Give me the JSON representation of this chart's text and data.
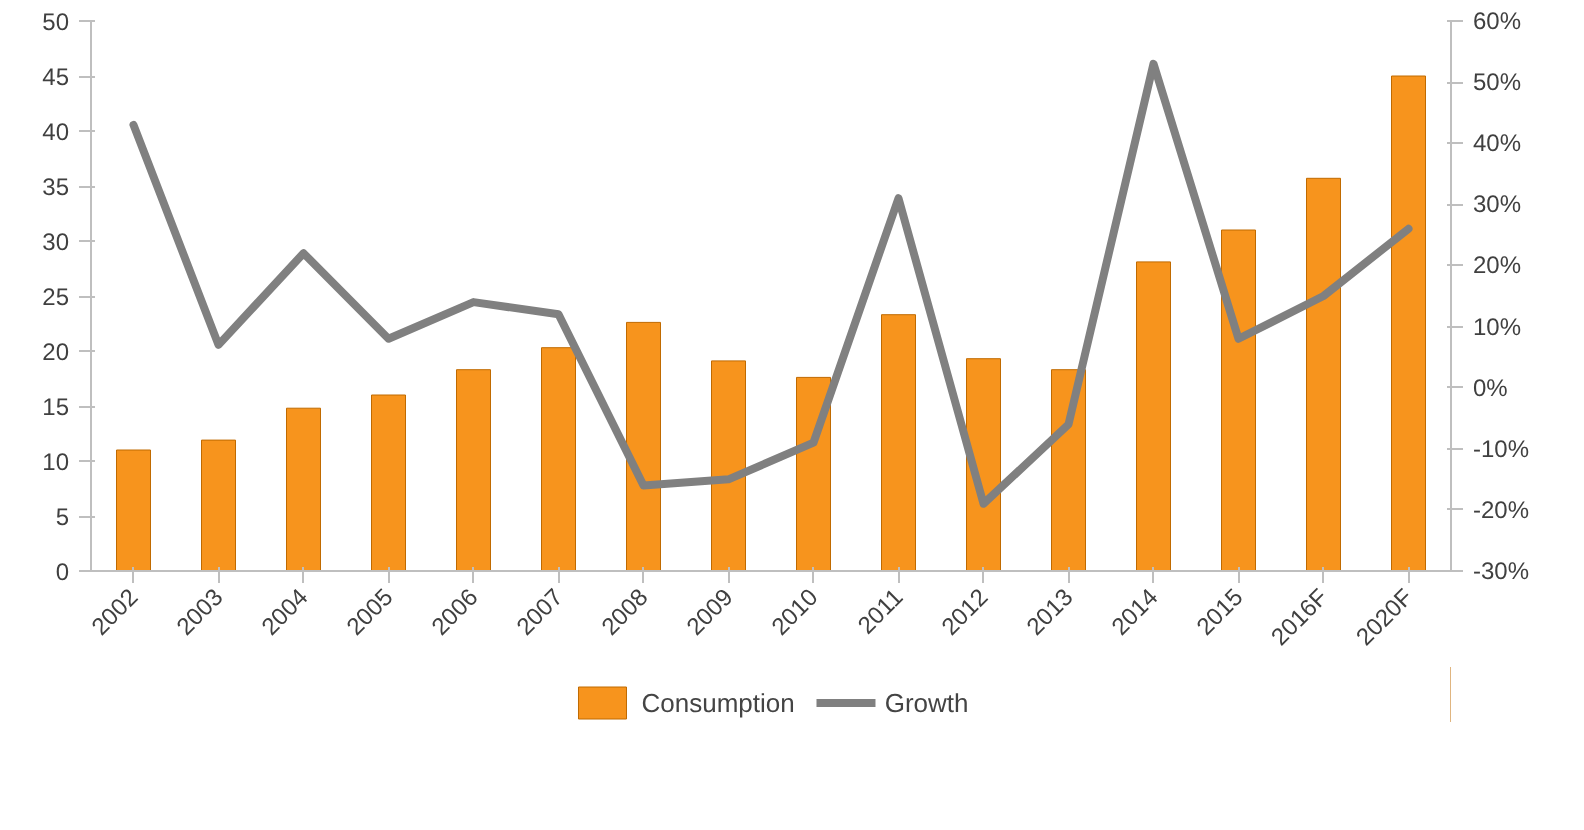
{
  "chart_data": {
    "type": "bar",
    "categories": [
      "2002",
      "2003",
      "2004",
      "2005",
      "2006",
      "2007",
      "2008",
      "2009",
      "2010",
      "2011",
      "2012",
      "2013",
      "2014",
      "2015",
      "2016F",
      "2020F"
    ],
    "series": [
      {
        "name": "Consumption",
        "color": "#f7941d",
        "values": [
          11.0,
          11.9,
          14.8,
          16.0,
          18.3,
          20.3,
          22.6,
          19.1,
          17.6,
          23.3,
          19.3,
          18.3,
          28.1,
          31.0,
          35.7,
          45.0
        ]
      },
      {
        "name": "Growth",
        "type": "line",
        "axis": "y2",
        "color": "#808080",
        "values": [
          43,
          7,
          22,
          8,
          14,
          12,
          -16,
          -15,
          -9,
          31,
          -19,
          -6,
          53,
          8,
          15,
          26
        ]
      }
    ],
    "ylim": [
      0,
      50
    ],
    "yticks": [
      0,
      5,
      10,
      15,
      20,
      25,
      30,
      35,
      40,
      45,
      50
    ],
    "y2lim": [
      -30,
      60
    ],
    "y2ticks": [
      {
        "value": -30,
        "label": "-30%"
      },
      {
        "value": -20,
        "label": "-20%"
      },
      {
        "value": -10,
        "label": "-10%"
      },
      {
        "value": 0,
        "label": "0%"
      },
      {
        "value": 10,
        "label": "10%"
      },
      {
        "value": 20,
        "label": "20%"
      },
      {
        "value": 30,
        "label": "30%"
      },
      {
        "value": 40,
        "label": "40%"
      },
      {
        "value": 50,
        "label": "50%"
      },
      {
        "value": 60,
        "label": "60%"
      }
    ],
    "grid": false,
    "legend": "bottom",
    "line_style": "solid",
    "marker": "none"
  }
}
